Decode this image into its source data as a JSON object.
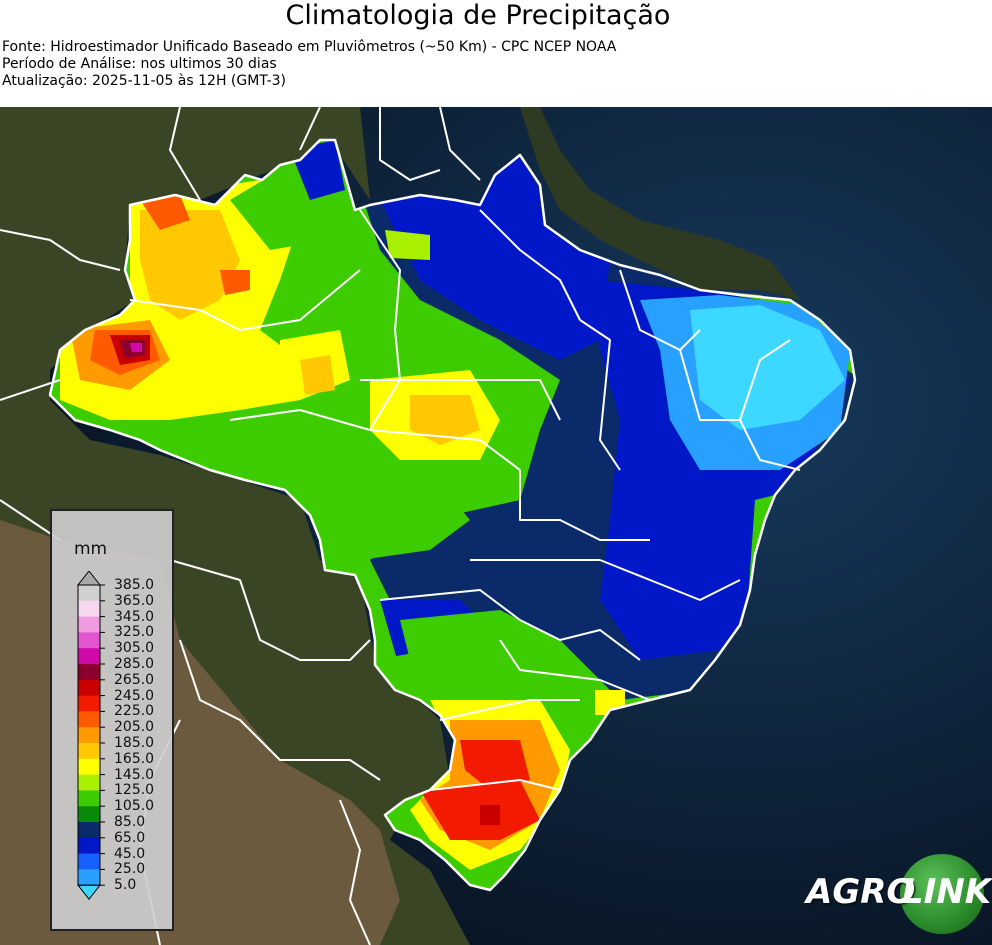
{
  "header": {
    "title": "Climatologia de Precipitação",
    "source": "Fonte: Hidroestimador Unificado Baseado em Pluviômetros (~50 Km) - CPC NCEP NOAA",
    "period": "Período de Análise: nos ultimos 30 dias",
    "updated": "Atualização: 2025-11-05 às 12H (GMT-3)"
  },
  "legend": {
    "unit": "mm",
    "ticks": [
      "385.0",
      "365.0",
      "345.0",
      "325.0",
      "305.0",
      "285.0",
      "265.0",
      "245.0",
      "225.0",
      "205.0",
      "185.0",
      "165.0",
      "145.0",
      "125.0",
      "105.0",
      "85.0",
      "65.0",
      "45.0",
      "25.0",
      "5.0"
    ],
    "colors": [
      "#a9a9a9",
      "#d0d0d0",
      "#f7d6f0",
      "#f29ae0",
      "#e155d0",
      "#d00aa8",
      "#8c0030",
      "#c80000",
      "#f21a00",
      "#ff5a00",
      "#ff9a00",
      "#ffc800",
      "#ffff00",
      "#a8f000",
      "#3ccc00",
      "#0a8a0a",
      "#0a2a6a",
      "#0018c8",
      "#1560ff",
      "#28a0ff",
      "#3cd8ff"
    ]
  },
  "logo": {
    "word1": "AGRO",
    "word2": "LINK"
  },
  "colors": {
    "ocean": "#0c1a2c",
    "land_dark": "#3b4a28",
    "border": "#ffffff"
  }
}
